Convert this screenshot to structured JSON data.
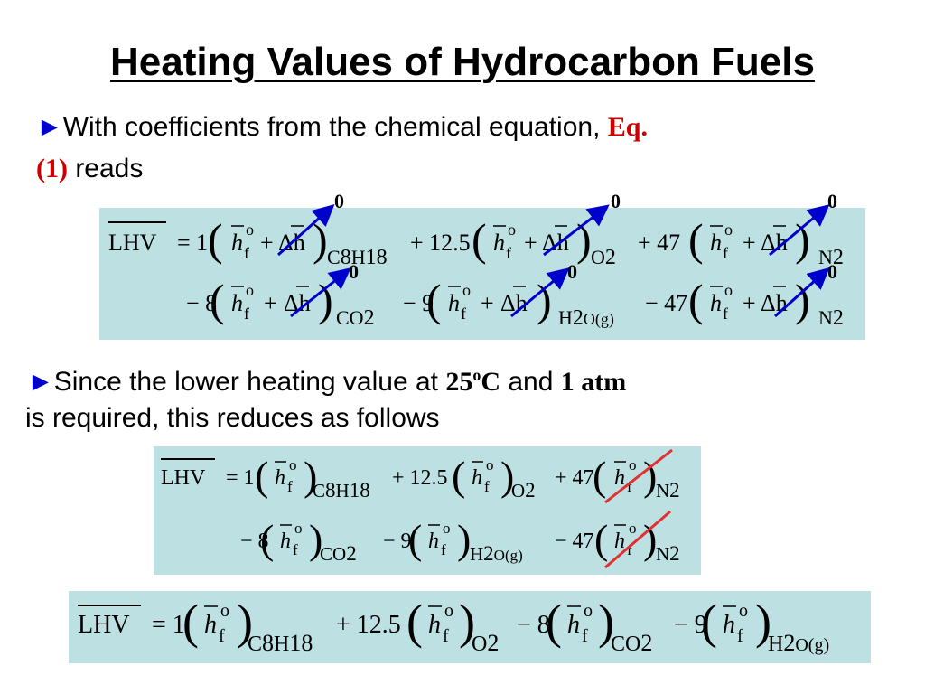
{
  "slide": {
    "title": "Heating Values of Hydrocarbon Fuels",
    "bullet1": {
      "marker": "►",
      "text_a": "With coefficients from the chemical equation, ",
      "ref_a": "Eq.",
      "ref_b": "(1)",
      "text_b": " reads"
    },
    "bullet2": {
      "marker": "►",
      "text_a": "Since the lower heating value at ",
      "temp": "25",
      "temp_sup": "o",
      "temp_unit": "C",
      "text_and": " and ",
      "pressure": "1 atm",
      "line2": "is required, this reduces as follows"
    }
  },
  "equation": {
    "lhs": "LHV",
    "h": "h",
    "f": "f",
    "o": "o",
    "delta_h": "Δh",
    "zero": "0",
    "terms_line1": [
      {
        "coef": "= 1",
        "species": [
          "C",
          "8",
          "H",
          "18"
        ]
      },
      {
        "coef": "+ 12.5",
        "species": [
          "O",
          "2"
        ]
      },
      {
        "coef": "+ 47",
        "species": [
          "N",
          "2"
        ]
      }
    ],
    "terms_line2": [
      {
        "coef": "− 8",
        "species": [
          "CO",
          "2"
        ]
      },
      {
        "coef": "− 9",
        "species": [
          "H",
          "2",
          "O(g)"
        ]
      },
      {
        "coef": "− 47",
        "species": [
          "N",
          "2"
        ]
      }
    ]
  },
  "colors": {
    "box_bg": "#bde0e3",
    "arrow": "#0000cc",
    "strike": "#e03030",
    "ref": "#cc0000"
  }
}
